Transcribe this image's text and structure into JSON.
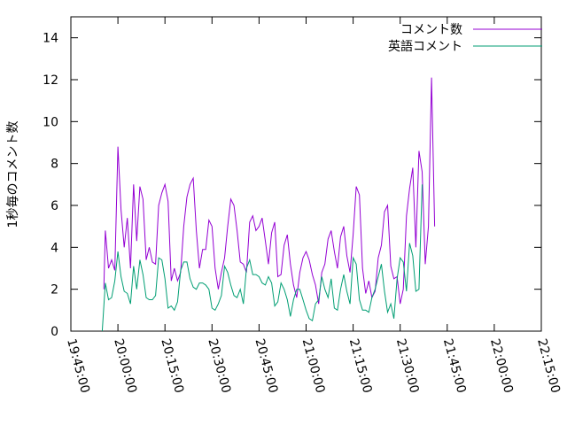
{
  "chart_data": {
    "type": "line",
    "ylabel": "1秒毎のコメント数",
    "xlim": [
      "19:45:00",
      "22:15:00"
    ],
    "ylim": [
      0,
      15
    ],
    "x_ticks": [
      "19:45:00",
      "20:00:00",
      "20:15:00",
      "20:30:00",
      "20:45:00",
      "21:00:00",
      "21:15:00",
      "21:30:00",
      "21:45:00",
      "22:00:00",
      "22:15:00"
    ],
    "y_ticks": [
      0,
      2,
      4,
      6,
      8,
      10,
      12,
      14
    ],
    "grid": false,
    "legend_position": "top-right",
    "series": [
      {
        "name": "コメント数",
        "color": "#9400d3",
        "points": [
          [
            "19:55:30",
            2.0
          ],
          [
            "19:56:00",
            4.8
          ],
          [
            "19:57:00",
            3.0
          ],
          [
            "19:58:00",
            3.4
          ],
          [
            "19:59:00",
            2.9
          ],
          [
            "20:00:00",
            8.8
          ],
          [
            "20:01:00",
            5.8
          ],
          [
            "20:02:00",
            4.0
          ],
          [
            "20:03:00",
            5.4
          ],
          [
            "20:04:00",
            3.0
          ],
          [
            "20:05:00",
            7.0
          ],
          [
            "20:06:00",
            4.3
          ],
          [
            "20:07:00",
            6.9
          ],
          [
            "20:08:00",
            6.3
          ],
          [
            "20:09:00",
            3.4
          ],
          [
            "20:10:00",
            4.0
          ],
          [
            "20:11:00",
            3.3
          ],
          [
            "20:12:00",
            3.2
          ],
          [
            "20:13:00",
            6.0
          ],
          [
            "20:14:00",
            6.6
          ],
          [
            "20:15:00",
            7.0
          ],
          [
            "20:16:00",
            6.2
          ],
          [
            "20:17:00",
            2.4
          ],
          [
            "20:18:00",
            3.0
          ],
          [
            "20:19:00",
            2.4
          ],
          [
            "20:20:00",
            2.8
          ],
          [
            "20:21:00",
            5.0
          ],
          [
            "20:22:00",
            6.4
          ],
          [
            "20:23:00",
            7.0
          ],
          [
            "20:24:00",
            7.3
          ],
          [
            "20:25:00",
            4.8
          ],
          [
            "20:26:00",
            3.0
          ],
          [
            "20:27:00",
            3.9
          ],
          [
            "20:28:00",
            3.9
          ],
          [
            "20:29:00",
            5.3
          ],
          [
            "20:30:00",
            5.0
          ],
          [
            "20:31:00",
            3.0
          ],
          [
            "20:32:00",
            2.0
          ],
          [
            "20:33:00",
            2.8
          ],
          [
            "20:34:00",
            3.5
          ],
          [
            "20:35:00",
            5.0
          ],
          [
            "20:36:00",
            6.3
          ],
          [
            "20:37:00",
            6.0
          ],
          [
            "20:38:00",
            4.8
          ],
          [
            "20:39:00",
            3.3
          ],
          [
            "20:40:00",
            3.2
          ],
          [
            "20:41:00",
            2.8
          ],
          [
            "20:42:00",
            5.2
          ],
          [
            "20:43:00",
            5.5
          ],
          [
            "20:44:00",
            4.8
          ],
          [
            "20:45:00",
            5.0
          ],
          [
            "20:46:00",
            5.4
          ],
          [
            "20:47:00",
            4.3
          ],
          [
            "20:48:00",
            3.2
          ],
          [
            "20:49:00",
            4.7
          ],
          [
            "20:50:00",
            5.2
          ],
          [
            "20:51:00",
            2.6
          ],
          [
            "20:52:00",
            2.7
          ],
          [
            "20:53:00",
            4.1
          ],
          [
            "20:54:00",
            4.6
          ],
          [
            "20:55:00",
            3.2
          ],
          [
            "20:56:00",
            2.2
          ],
          [
            "20:57:00",
            1.6
          ],
          [
            "20:58:00",
            2.8
          ],
          [
            "20:59:00",
            3.5
          ],
          [
            "21:00:00",
            3.8
          ],
          [
            "21:01:00",
            3.4
          ],
          [
            "21:02:00",
            2.7
          ],
          [
            "21:03:00",
            2.2
          ],
          [
            "21:04:00",
            1.3
          ],
          [
            "21:05:00",
            2.8
          ],
          [
            "21:06:00",
            3.2
          ],
          [
            "21:07:00",
            4.4
          ],
          [
            "21:08:00",
            4.8
          ],
          [
            "21:09:00",
            3.8
          ],
          [
            "21:10:00",
            3.0
          ],
          [
            "21:11:00",
            4.5
          ],
          [
            "21:12:00",
            5.0
          ],
          [
            "21:13:00",
            3.6
          ],
          [
            "21:14:00",
            2.8
          ],
          [
            "21:15:00",
            4.6
          ],
          [
            "21:16:00",
            6.9
          ],
          [
            "21:17:00",
            6.5
          ],
          [
            "21:18:00",
            3.0
          ],
          [
            "21:19:00",
            1.8
          ],
          [
            "21:20:00",
            2.4
          ],
          [
            "21:21:00",
            1.6
          ],
          [
            "21:22:00",
            1.9
          ],
          [
            "21:23:00",
            3.5
          ],
          [
            "21:24:00",
            4.1
          ],
          [
            "21:25:00",
            5.7
          ],
          [
            "21:26:00",
            6.0
          ],
          [
            "21:27:00",
            3.1
          ],
          [
            "21:28:00",
            2.5
          ],
          [
            "21:29:00",
            2.6
          ],
          [
            "21:30:00",
            1.3
          ],
          [
            "21:31:00",
            2.0
          ],
          [
            "21:32:00",
            5.5
          ],
          [
            "21:33:00",
            6.8
          ],
          [
            "21:34:00",
            7.8
          ],
          [
            "21:35:00",
            4.0
          ],
          [
            "21:36:00",
            8.6
          ],
          [
            "21:37:00",
            7.6
          ],
          [
            "21:38:00",
            3.2
          ],
          [
            "21:39:00",
            5.0
          ],
          [
            "21:40:00",
            12.1
          ],
          [
            "21:41:00",
            5.0
          ]
        ]
      },
      {
        "name": "英語コメント",
        "color": "#009e73",
        "points": [
          [
            "19:55:00",
            0.0
          ],
          [
            "19:56:00",
            2.3
          ],
          [
            "19:57:00",
            1.5
          ],
          [
            "19:58:00",
            1.6
          ],
          [
            "19:59:00",
            2.4
          ],
          [
            "20:00:00",
            3.8
          ],
          [
            "20:01:00",
            2.6
          ],
          [
            "20:02:00",
            1.9
          ],
          [
            "20:03:00",
            1.8
          ],
          [
            "20:04:00",
            1.3
          ],
          [
            "20:05:00",
            3.1
          ],
          [
            "20:06:00",
            2.0
          ],
          [
            "20:07:00",
            3.4
          ],
          [
            "20:08:00",
            2.7
          ],
          [
            "20:09:00",
            1.6
          ],
          [
            "20:10:00",
            1.5
          ],
          [
            "20:11:00",
            1.5
          ],
          [
            "20:12:00",
            1.7
          ],
          [
            "20:13:00",
            3.5
          ],
          [
            "20:14:00",
            3.4
          ],
          [
            "20:15:00",
            2.5
          ],
          [
            "20:16:00",
            1.1
          ],
          [
            "20:17:00",
            1.2
          ],
          [
            "20:18:00",
            1.0
          ],
          [
            "20:19:00",
            1.4
          ],
          [
            "20:20:00",
            2.9
          ],
          [
            "20:21:00",
            3.3
          ],
          [
            "20:22:00",
            3.3
          ],
          [
            "20:23:00",
            2.5
          ],
          [
            "20:24:00",
            2.1
          ],
          [
            "20:25:00",
            2.0
          ],
          [
            "20:26:00",
            2.3
          ],
          [
            "20:27:00",
            2.3
          ],
          [
            "20:28:00",
            2.2
          ],
          [
            "20:29:00",
            2.0
          ],
          [
            "20:30:00",
            1.1
          ],
          [
            "20:31:00",
            1.0
          ],
          [
            "20:32:00",
            1.3
          ],
          [
            "20:33:00",
            1.7
          ],
          [
            "20:34:00",
            3.1
          ],
          [
            "20:35:00",
            2.8
          ],
          [
            "20:36:00",
            2.2
          ],
          [
            "20:37:00",
            1.7
          ],
          [
            "20:38:00",
            1.6
          ],
          [
            "20:39:00",
            2.0
          ],
          [
            "20:40:00",
            1.3
          ],
          [
            "20:41:00",
            3.0
          ],
          [
            "20:42:00",
            3.4
          ],
          [
            "20:43:00",
            2.7
          ],
          [
            "20:44:00",
            2.7
          ],
          [
            "20:45:00",
            2.6
          ],
          [
            "20:46:00",
            2.3
          ],
          [
            "20:47:00",
            2.2
          ],
          [
            "20:48:00",
            2.6
          ],
          [
            "20:49:00",
            2.3
          ],
          [
            "20:50:00",
            1.2
          ],
          [
            "20:51:00",
            1.4
          ],
          [
            "20:52:00",
            2.3
          ],
          [
            "20:53:00",
            2.0
          ],
          [
            "20:54:00",
            1.5
          ],
          [
            "20:55:00",
            0.7
          ],
          [
            "20:56:00",
            1.5
          ],
          [
            "20:57:00",
            2.0
          ],
          [
            "20:58:00",
            2.0
          ],
          [
            "20:59:00",
            1.5
          ],
          [
            "21:00:00",
            1.0
          ],
          [
            "21:01:00",
            0.6
          ],
          [
            "21:02:00",
            0.5
          ],
          [
            "21:03:00",
            1.3
          ],
          [
            "21:04:00",
            1.5
          ],
          [
            "21:05:00",
            2.6
          ],
          [
            "21:06:00",
            2.0
          ],
          [
            "21:07:00",
            1.6
          ],
          [
            "21:08:00",
            2.5
          ],
          [
            "21:09:00",
            1.1
          ],
          [
            "21:10:00",
            1.0
          ],
          [
            "21:11:00",
            2.0
          ],
          [
            "21:12:00",
            2.7
          ],
          [
            "21:13:00",
            1.9
          ],
          [
            "21:14:00",
            1.3
          ],
          [
            "21:15:00",
            3.5
          ],
          [
            "21:16:00",
            3.2
          ],
          [
            "21:17:00",
            1.5
          ],
          [
            "21:18:00",
            1.0
          ],
          [
            "21:19:00",
            1.0
          ],
          [
            "21:20:00",
            0.9
          ],
          [
            "21:21:00",
            1.6
          ],
          [
            "21:22:00",
            2.0
          ],
          [
            "21:23:00",
            2.6
          ],
          [
            "21:24:00",
            3.2
          ],
          [
            "21:25:00",
            1.9
          ],
          [
            "21:26:00",
            0.9
          ],
          [
            "21:27:00",
            1.3
          ],
          [
            "21:28:00",
            0.6
          ],
          [
            "21:29:00",
            2.5
          ],
          [
            "21:30:00",
            3.5
          ],
          [
            "21:31:00",
            3.3
          ],
          [
            "21:32:00",
            1.9
          ],
          [
            "21:33:00",
            4.2
          ],
          [
            "21:34:00",
            3.6
          ],
          [
            "21:35:00",
            1.9
          ],
          [
            "21:36:00",
            2.0
          ],
          [
            "21:37:00",
            7.0
          ]
        ]
      }
    ]
  }
}
